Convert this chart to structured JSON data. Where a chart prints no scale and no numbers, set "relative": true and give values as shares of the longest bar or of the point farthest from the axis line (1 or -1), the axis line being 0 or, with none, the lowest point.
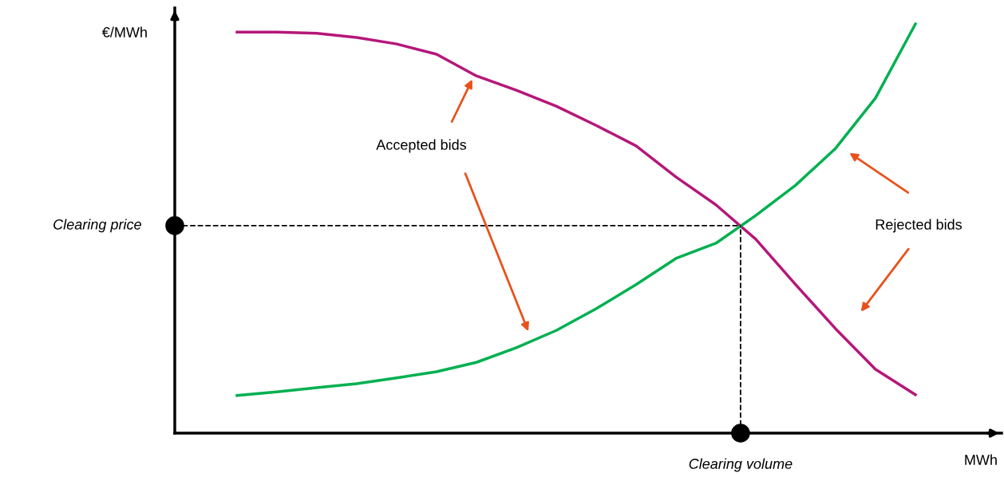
{
  "chart_data": {
    "type": "line",
    "relative": true,
    "xlabel": "MWh",
    "ylabel": "€/MWh",
    "categories": [
      null,
      null,
      null,
      null,
      null,
      null,
      null,
      null,
      null,
      null,
      null,
      null,
      null,
      null,
      null,
      null,
      null,
      null
    ],
    "series": [
      {
        "color": "#b5177a",
        "values": [
          0.98,
          0.98,
          0.977,
          0.967,
          0.951,
          0.926,
          0.873,
          0.838,
          0.799,
          0.752,
          0.702,
          0.626,
          0.558,
          0.474,
          0.363,
          0.255,
          0.156,
          0.094
        ]
      },
      {
        "color": "#00b050",
        "values": [
          0.092,
          0.101,
          0.111,
          0.121,
          0.135,
          0.15,
          0.173,
          0.209,
          0.251,
          0.304,
          0.363,
          0.427,
          0.464,
          0.532,
          0.606,
          0.696,
          0.819,
          1.0
        ]
      }
    ],
    "ref_lines": [
      {
        "axis": "y",
        "value": 0.507,
        "label": "Clearing price",
        "color": "#000000",
        "line_style": "dashed"
      }
    ],
    "annotations": [
      "Accepted bids",
      "Rejected bids",
      "Clearing volume"
    ],
    "grid": false,
    "legend": false,
    "marker": "none",
    "line_style": "solid"
  }
}
